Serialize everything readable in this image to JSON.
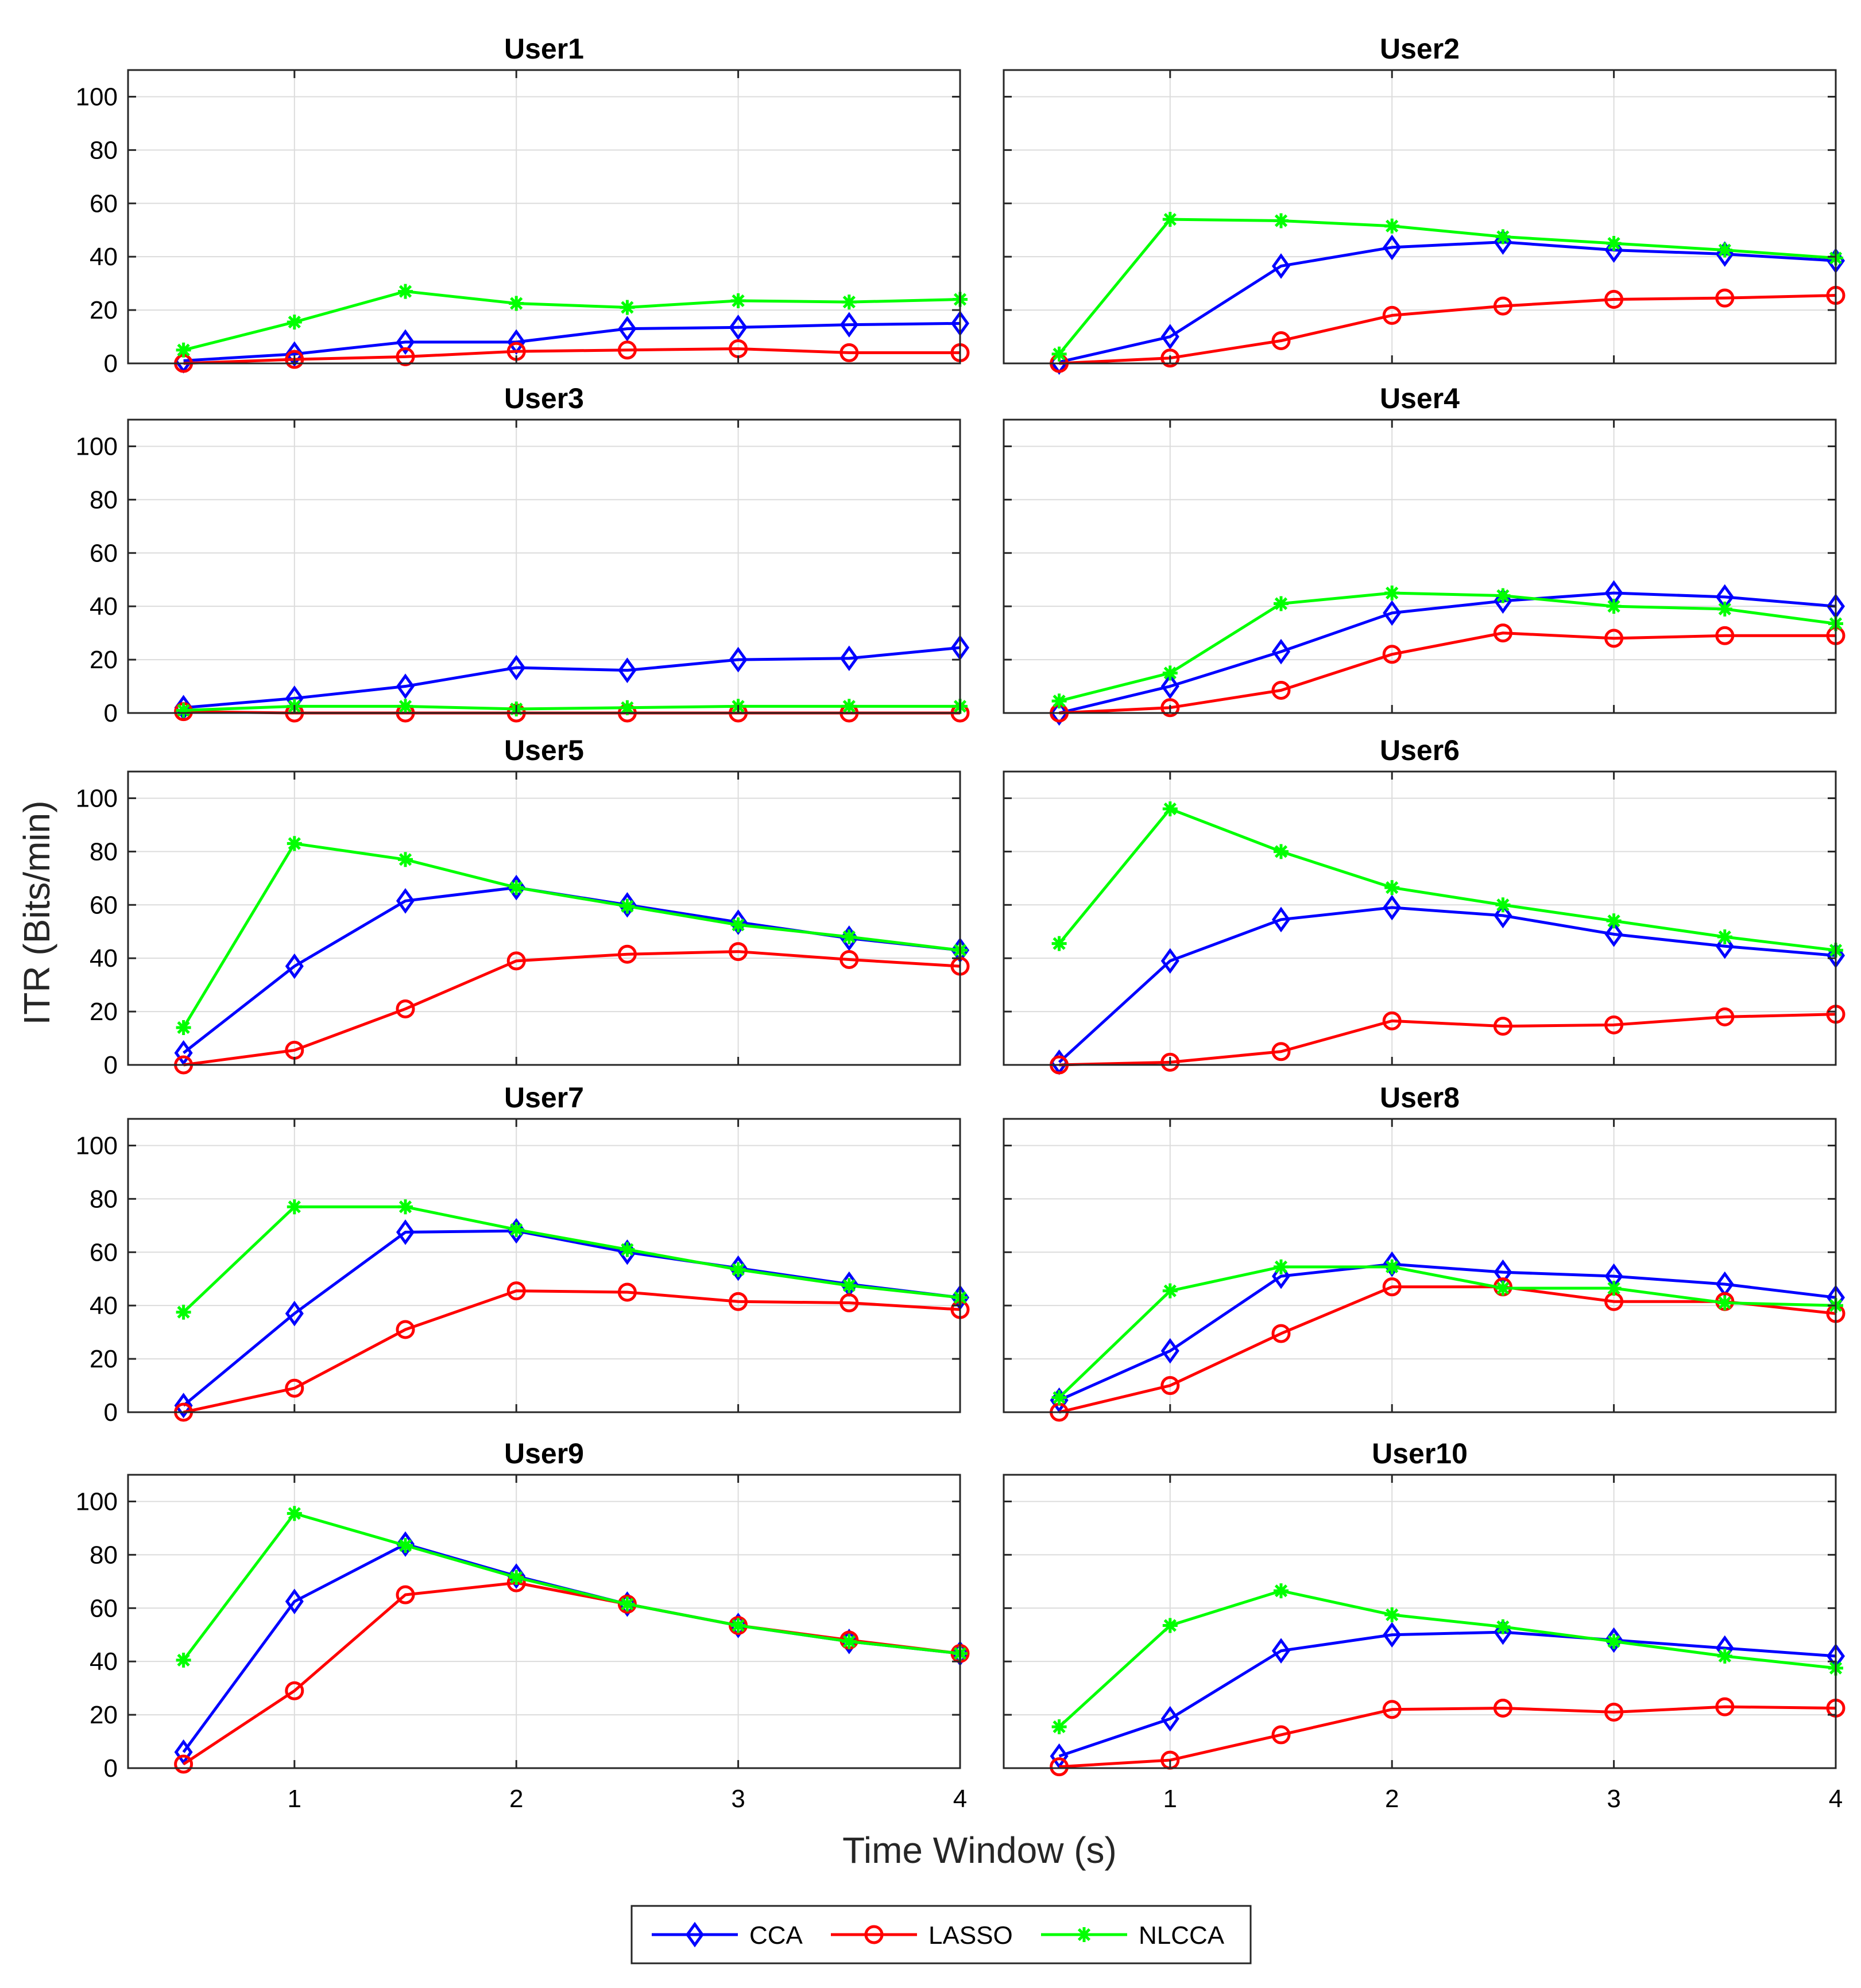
{
  "chart_data": {
    "type": "line",
    "xlabel": "Time Window (s)",
    "ylabel": "ITR (Bits/min)",
    "xlim": [
      0.25,
      4
    ],
    "ylim": [
      0,
      110
    ],
    "xticks": [
      "1",
      "2",
      "3",
      "4"
    ],
    "xtick_values": [
      1,
      2,
      3,
      4
    ],
    "yticks": [
      "0",
      "20",
      "40",
      "60",
      "80",
      "100"
    ],
    "ytick_values": [
      0,
      20,
      40,
      60,
      80,
      100
    ],
    "grid": true,
    "x": [
      0.5,
      1,
      1.5,
      2,
      2.5,
      3,
      3.5,
      4
    ],
    "legend": {
      "placement": "bottom-center",
      "entries": [
        {
          "name": "CCA",
          "color": "#0000ff",
          "marker": "diamond"
        },
        {
          "name": "LASSO",
          "color": "#ff0000",
          "marker": "circle"
        },
        {
          "name": "NLCCA",
          "color": "#00ff00",
          "marker": "asterisk"
        }
      ]
    },
    "panels": [
      {
        "title": "User1",
        "series": [
          {
            "name": "CCA",
            "values": [
              1,
              3.5,
              8,
              8,
              13,
              13.5,
              14.5,
              15
            ]
          },
          {
            "name": "LASSO",
            "values": [
              0,
              1.5,
              2.5,
              4.5,
              5,
              5.5,
              4,
              4
            ]
          },
          {
            "name": "NLCCA",
            "values": [
              5,
              15.5,
              27,
              22.5,
              21,
              23.5,
              23,
              24
            ]
          }
        ]
      },
      {
        "title": "User2",
        "series": [
          {
            "name": "CCA",
            "values": [
              0.5,
              10,
              36.5,
              43.5,
              45.5,
              42.5,
              41,
              38.5
            ]
          },
          {
            "name": "LASSO",
            "values": [
              0,
              2,
              8.5,
              18,
              21.5,
              24,
              24.5,
              25.5
            ]
          },
          {
            "name": "NLCCA",
            "values": [
              3.5,
              54,
              53.5,
              51.5,
              47.5,
              45,
              42.5,
              39.5
            ]
          }
        ]
      },
      {
        "title": "User3",
        "series": [
          {
            "name": "CCA",
            "values": [
              2,
              5.5,
              10,
              17,
              16,
              20,
              20.5,
              24.5
            ]
          },
          {
            "name": "LASSO",
            "values": [
              0.5,
              0,
              0,
              0,
              0,
              0,
              0,
              0
            ]
          },
          {
            "name": "NLCCA",
            "values": [
              1,
              2.5,
              2.5,
              1.5,
              2,
              2.5,
              2.5,
              2.5
            ]
          }
        ]
      },
      {
        "title": "User4",
        "series": [
          {
            "name": "CCA",
            "values": [
              0,
              10,
              23,
              37.5,
              42,
              45,
              43.5,
              40
            ]
          },
          {
            "name": "LASSO",
            "values": [
              0,
              2,
              8.5,
              22,
              30,
              28,
              29,
              29
            ]
          },
          {
            "name": "NLCCA",
            "values": [
              4.5,
              15,
              41,
              45,
              44,
              40,
              39,
              33.5
            ]
          }
        ]
      },
      {
        "title": "User5",
        "series": [
          {
            "name": "CCA",
            "values": [
              4.5,
              37,
              61.5,
              66.5,
              60,
              53.5,
              47.5,
              43
            ]
          },
          {
            "name": "LASSO",
            "values": [
              0,
              5.5,
              21,
              39,
              41.5,
              42.5,
              39.5,
              37
            ]
          },
          {
            "name": "NLCCA",
            "values": [
              14,
              83,
              77,
              66.5,
              59.5,
              52.5,
              48,
              43
            ]
          }
        ]
      },
      {
        "title": "User6",
        "series": [
          {
            "name": "CCA",
            "values": [
              1,
              39,
              54.5,
              59,
              56,
              49,
              44.5,
              41
            ]
          },
          {
            "name": "LASSO",
            "values": [
              0,
              1,
              5,
              16.5,
              14.5,
              15,
              18,
              19
            ]
          },
          {
            "name": "NLCCA",
            "values": [
              45.5,
              96,
              80,
              66.5,
              60,
              54,
              48,
              43
            ]
          }
        ]
      },
      {
        "title": "User7",
        "series": [
          {
            "name": "CCA",
            "values": [
              2.5,
              37,
              67.5,
              68,
              60,
              54,
              48,
              43
            ]
          },
          {
            "name": "LASSO",
            "values": [
              0,
              9,
              31,
              45.5,
              45,
              41.5,
              41,
              38.5
            ]
          },
          {
            "name": "NLCCA",
            "values": [
              37.5,
              77,
              77,
              68.5,
              61,
              53.5,
              47.5,
              43
            ]
          }
        ]
      },
      {
        "title": "User8",
        "series": [
          {
            "name": "CCA",
            "values": [
              4.5,
              23,
              51,
              55.5,
              52.5,
              51,
              48,
              43
            ]
          },
          {
            "name": "LASSO",
            "values": [
              0,
              10,
              29.5,
              47,
              47,
              41.5,
              41.5,
              37
            ]
          },
          {
            "name": "NLCCA",
            "values": [
              5.5,
              45.5,
              54.5,
              54.5,
              46.5,
              46.5,
              41,
              40
            ]
          }
        ]
      },
      {
        "title": "User9",
        "series": [
          {
            "name": "CCA",
            "values": [
              6,
              62.5,
              84,
              72,
              61.5,
              53.5,
              47.5,
              43
            ]
          },
          {
            "name": "LASSO",
            "values": [
              1.5,
              29,
              65,
              69.5,
              61.5,
              53.5,
              48,
              43
            ]
          },
          {
            "name": "NLCCA",
            "values": [
              40.5,
              95.5,
              83.5,
              71.5,
              61.5,
              53.5,
              47.5,
              43
            ]
          }
        ]
      },
      {
        "title": "User10",
        "series": [
          {
            "name": "CCA",
            "values": [
              4.5,
              18.5,
              44,
              50,
              51,
              48,
              45,
              42
            ]
          },
          {
            "name": "LASSO",
            "values": [
              0.5,
              3,
              12.5,
              22,
              22.5,
              21,
              23,
              22.5
            ]
          },
          {
            "name": "NLCCA",
            "values": [
              15.5,
              53.5,
              66.5,
              57.5,
              53,
              47.5,
              42,
              37.5
            ]
          }
        ]
      }
    ]
  }
}
